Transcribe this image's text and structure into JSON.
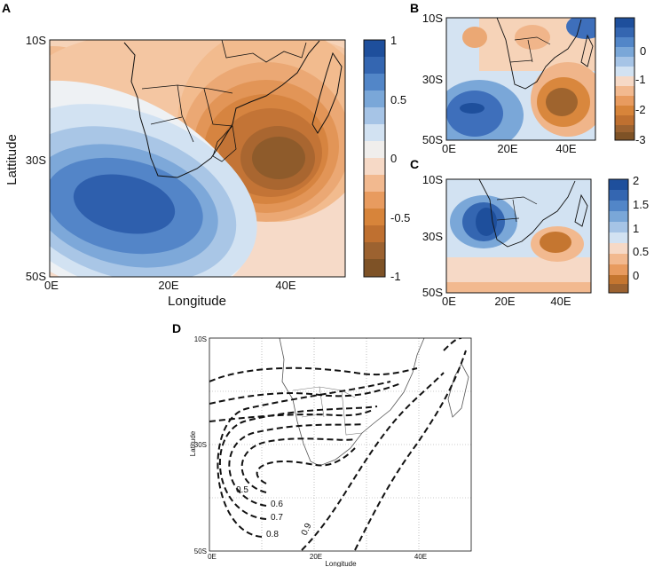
{
  "panels": {
    "A": {
      "letter": "A",
      "yticks": [
        "10S",
        "30S",
        "50S"
      ],
      "xticks": [
        "0E",
        "20E",
        "40E"
      ],
      "xlabel": "Longitude",
      "ylabel": "Lattitude",
      "colorbar": {
        "ticks": [
          "1",
          "0.5",
          "0",
          "-0.5",
          "-1"
        ],
        "range": [
          -1,
          1
        ],
        "colors": [
          "#1e4f9c",
          "#3466b1",
          "#5286c8",
          "#7aa7d8",
          "#a6c4e6",
          "#d2e2f2",
          "#f0eeec",
          "#f6d9c6",
          "#f2b98f",
          "#e89b5f",
          "#d7843a",
          "#bf7030",
          "#9c6230",
          "#7e5226"
        ]
      }
    },
    "B": {
      "letter": "B",
      "yticks": [
        "10S",
        "30S",
        "50S"
      ],
      "xticks": [
        "0E",
        "20E",
        "40E"
      ],
      "colorbar": {
        "ticks": [
          "0",
          "-1",
          "-2",
          "-3"
        ],
        "range": [
          -3,
          1
        ]
      }
    },
    "C": {
      "letter": "C",
      "yticks": [
        "10S",
        "30S",
        "50S"
      ],
      "xticks": [
        "0E",
        "20E",
        "40E"
      ],
      "colorbar": {
        "ticks": [
          "2",
          "1.5",
          "1",
          "0.5",
          "0"
        ],
        "range": [
          -0.25,
          2
        ]
      }
    },
    "D": {
      "letter": "D",
      "yticks": [
        "10S",
        "30S",
        "50S"
      ],
      "xticks": [
        "0E",
        "20E",
        "40E"
      ],
      "xlabel": "Longitude",
      "ylabel": "Latitude",
      "contour_labels": [
        "0.5",
        "0.6",
        "0.7",
        "0.8",
        "0.9"
      ]
    }
  }
}
